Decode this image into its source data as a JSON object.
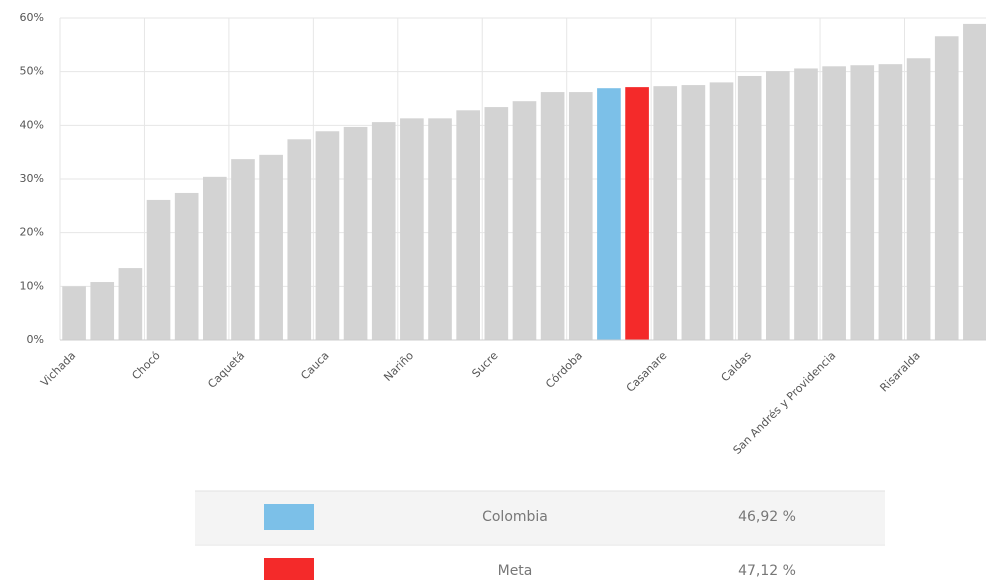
{
  "chart_data": {
    "type": "bar",
    "categories": [
      "Vichada",
      null,
      null,
      "Chocó",
      null,
      null,
      "Caquetá",
      null,
      null,
      "Cauca",
      null,
      null,
      "Nariño",
      null,
      null,
      "Sucre",
      null,
      null,
      "Córdoba",
      null,
      null,
      "Casanare",
      null,
      null,
      "Caldas",
      null,
      null,
      "San Andrés y Providencia",
      null,
      null,
      "Risaralda",
      null,
      null
    ],
    "values": [
      10.0,
      10.8,
      13.4,
      26.1,
      27.4,
      30.4,
      33.7,
      34.5,
      37.4,
      38.9,
      39.7,
      40.6,
      41.3,
      41.3,
      42.8,
      43.4,
      44.5,
      46.2,
      46.2,
      46.92,
      47.12,
      47.3,
      47.5,
      48.0,
      49.2,
      50.1,
      50.6,
      51.0,
      51.2,
      51.4,
      52.5,
      56.6,
      58.9
    ],
    "colors": [
      "#d3d3d3",
      "#d3d3d3",
      "#d3d3d3",
      "#d3d3d3",
      "#d3d3d3",
      "#d3d3d3",
      "#d3d3d3",
      "#d3d3d3",
      "#d3d3d3",
      "#d3d3d3",
      "#d3d3d3",
      "#d3d3d3",
      "#d3d3d3",
      "#d3d3d3",
      "#d3d3d3",
      "#d3d3d3",
      "#d3d3d3",
      "#d3d3d3",
      "#d3d3d3",
      "#7cc0e8",
      "#f42a2a",
      "#d3d3d3",
      "#d3d3d3",
      "#d3d3d3",
      "#d3d3d3",
      "#d3d3d3",
      "#d3d3d3",
      "#d3d3d3",
      "#d3d3d3",
      "#d3d3d3",
      "#d3d3d3",
      "#d3d3d3",
      "#d3d3d3"
    ],
    "ylim": [
      0,
      60
    ],
    "yticks": [
      {
        "value": 0,
        "label": "0%"
      },
      {
        "value": 10,
        "label": "10%"
      },
      {
        "value": 20,
        "label": "20%"
      },
      {
        "value": 30,
        "label": "30%"
      },
      {
        "value": 40,
        "label": "40%"
      },
      {
        "value": 50,
        "label": "50%"
      },
      {
        "value": 60,
        "label": "60%"
      }
    ],
    "grid": true,
    "legend": [
      {
        "name": "Colombia",
        "color": "#7cc0e8",
        "value": 46.92,
        "value_label": "46,92 %"
      },
      {
        "name": "Meta",
        "color": "#f42a2a",
        "value": 47.12,
        "value_label": "47,12 %"
      }
    ]
  }
}
